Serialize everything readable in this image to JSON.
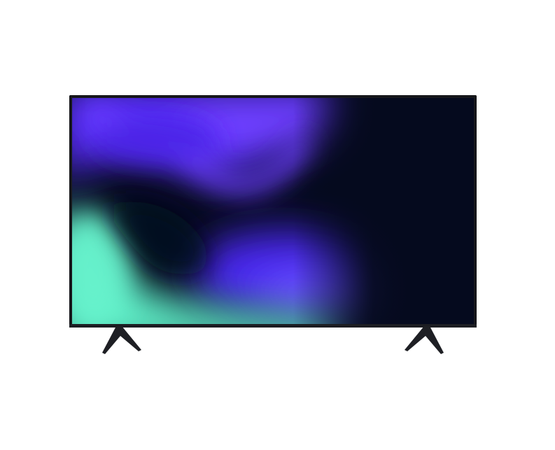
{
  "scene": {
    "subject": "television",
    "background_color": "#ffffff",
    "frame_color": "#17181c",
    "screen_base_color": "#05091f",
    "wallpaper_colors": {
      "violet": "#5a2dff",
      "indigo": "#3b1fd6",
      "teal": "#5ff0c8",
      "navy": "#050a1e"
    },
    "stand_color": "#1e1f24"
  }
}
